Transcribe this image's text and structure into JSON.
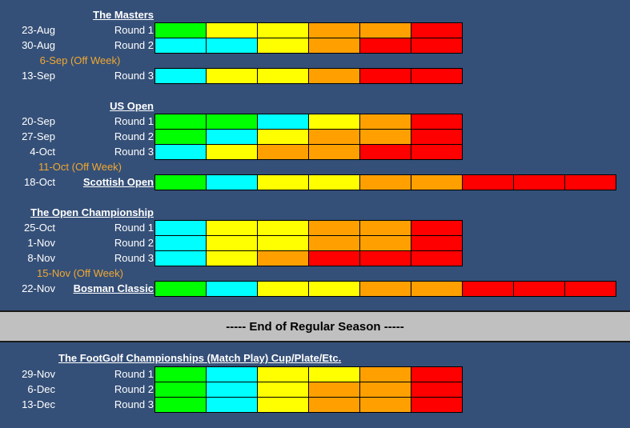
{
  "colors": {
    "G": "#00ff00",
    "C": "#00ffff",
    "Y": "#ffff00",
    "O": "#ffa000",
    "R": "#ff0000"
  },
  "sections": [
    {
      "title": "The Masters",
      "rows": [
        {
          "date": "23-Aug",
          "label": "Round 1",
          "cells": [
            "G",
            "Y",
            "Y",
            "O",
            "O",
            "R"
          ]
        },
        {
          "date": "30-Aug",
          "label": "Round 2",
          "cells": [
            "C",
            "C",
            "Y",
            "O",
            "R",
            "R"
          ]
        },
        {
          "off": "6-Sep (Off Week)"
        },
        {
          "date": "13-Sep",
          "label": "Round 3",
          "cells": [
            "C",
            "Y",
            "Y",
            "O",
            "R",
            "R"
          ]
        }
      ]
    },
    {
      "title": "US Open",
      "rows": [
        {
          "date": "20-Sep",
          "label": "Round 1",
          "cells": [
            "G",
            "G",
            "C",
            "Y",
            "O",
            "R"
          ]
        },
        {
          "date": "27-Sep",
          "label": "Round 2",
          "cells": [
            "G",
            "C",
            "Y",
            "O",
            "O",
            "R"
          ]
        },
        {
          "date": "4-Oct",
          "label": "Round 3",
          "cells": [
            "C",
            "Y",
            "O",
            "O",
            "R",
            "R"
          ]
        },
        {
          "off": "11-Oct (Off Week)"
        },
        {
          "date": "18-Oct",
          "label": "Scottish Open",
          "underline": true,
          "cells": [
            "G",
            "C",
            "Y",
            "Y",
            "O",
            "O",
            "R",
            "R",
            "R"
          ]
        }
      ]
    },
    {
      "title": "The Open Championship",
      "rows": [
        {
          "date": "25-Oct",
          "label": "Round 1",
          "cells": [
            "C",
            "Y",
            "Y",
            "O",
            "O",
            "R"
          ]
        },
        {
          "date": "1-Nov",
          "label": "Round 2",
          "cells": [
            "C",
            "Y",
            "Y",
            "O",
            "O",
            "R"
          ]
        },
        {
          "date": "8-Nov",
          "label": "Round 3",
          "cells": [
            "C",
            "Y",
            "O",
            "R",
            "R",
            "R"
          ]
        },
        {
          "off": "15-Nov (Off Week)"
        },
        {
          "date": "22-Nov",
          "label": "Bosman Classic",
          "underline": true,
          "cells": [
            "G",
            "C",
            "Y",
            "Y",
            "O",
            "O",
            "R",
            "R",
            "R"
          ]
        }
      ]
    }
  ],
  "banner": "----- End of Regular Season -----",
  "playoffs": {
    "title": "The FootGolf Championships (Match Play) Cup/Plate/Etc.",
    "rows": [
      {
        "date": "29-Nov",
        "label": "Round 1",
        "cells": [
          "G",
          "C",
          "Y",
          "Y",
          "O",
          "R"
        ]
      },
      {
        "date": "6-Dec",
        "label": "Round 2",
        "cells": [
          "G",
          "C",
          "Y",
          "O",
          "O",
          "R"
        ]
      },
      {
        "date": "13-Dec",
        "label": "Round 3",
        "cells": [
          "G",
          "C",
          "Y",
          "O",
          "O",
          "R"
        ]
      }
    ]
  }
}
